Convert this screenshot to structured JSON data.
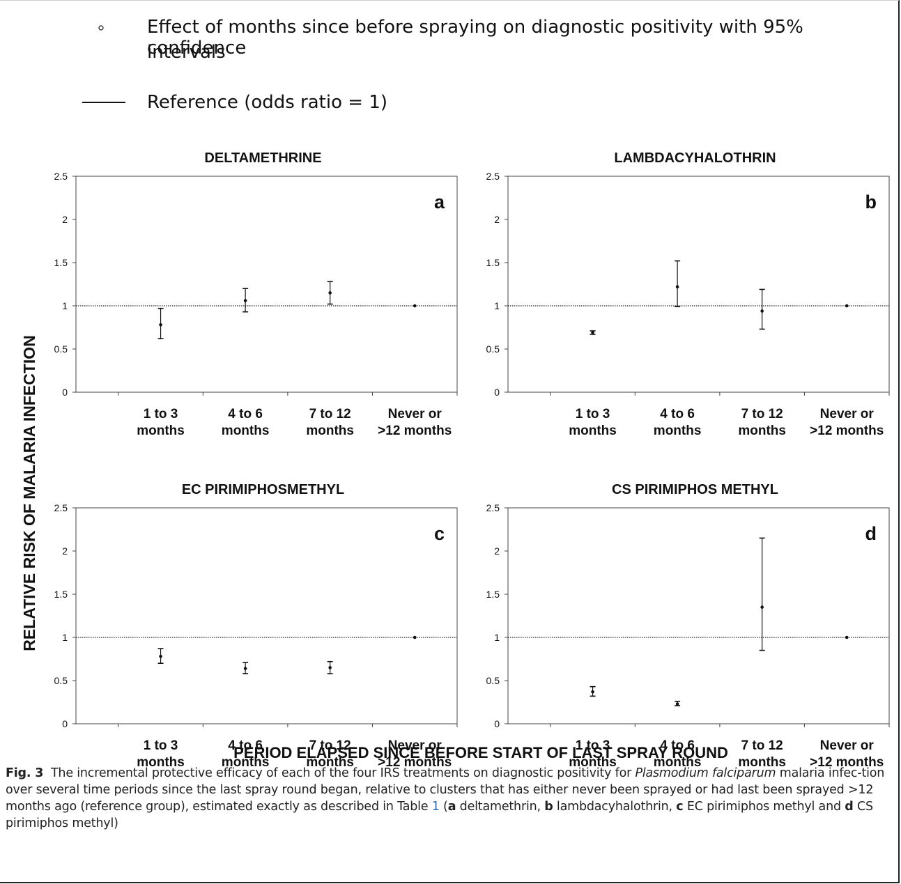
{
  "legend": {
    "point_label": "Effect of months since before spraying on diagnostic positivity with 95% confidence intervals",
    "point_label_line1": "Effect of months since before spraying on diagnostic positivity with 95% confidence",
    "point_label_line2": "intervals",
    "reference_label": "Reference (odds ratio = 1)"
  },
  "ylabel": "RELATIVE RISK OF MALARIA  INFECTION",
  "xlabel": "PERIOD ELAPSED SINCE BEFORE START OF LAST SPRAY ROUND",
  "caption": {
    "fig_label": "Fig. 3",
    "part1": "The incremental protective efficacy of each of the four IRS treatments on diagnostic positivity for ",
    "species": "Plasmodium falciparum",
    "part2": " malaria infec-tion over several time periods since the last spray round began, relative to clusters that has either never been sprayed or had last been sprayed >12 months ago (reference group), estimated exactly as described in Table ",
    "table_ref": "1",
    "part3": " (",
    "a": "a",
    "a_text": " deltamethrin, ",
    "b": "b",
    "b_text": " lambdacyhalothrin, ",
    "c": "c",
    "c_text": " EC pirimiphos methyl and ",
    "d": "d",
    "d_text": " CS pirimiphos methyl)"
  },
  "colors": {
    "ink": "#111111",
    "reference_line": "#222222"
  },
  "chart_data": [
    {
      "type": "scatter",
      "title": "DELTAMETHRINE",
      "panel_letter": "a",
      "categories": [
        [
          "1 to 3",
          "months"
        ],
        [
          "4 to 6",
          "months"
        ],
        [
          "7 to 12",
          "months"
        ],
        [
          "Never or",
          ">12 months"
        ]
      ],
      "values": [
        0.78,
        1.06,
        1.15,
        1.0
      ],
      "ci_low": [
        0.62,
        0.93,
        1.02,
        1.0
      ],
      "ci_high": [
        0.97,
        1.2,
        1.28,
        1.0
      ],
      "reference": 1,
      "ylim": [
        0,
        2.5
      ],
      "yticks": [
        "0",
        "0.5",
        "1",
        "1.5",
        "2",
        "2.5"
      ]
    },
    {
      "type": "scatter",
      "title": "LAMBDACYHALOTHRIN",
      "panel_letter": "b",
      "categories": [
        [
          "1 to 3",
          "months"
        ],
        [
          "4 to 6",
          "months"
        ],
        [
          "7 to 12",
          "months"
        ],
        [
          "Never or",
          ">12 months"
        ]
      ],
      "values": [
        0.69,
        1.22,
        0.94,
        1.0
      ],
      "ci_low": [
        0.67,
        0.99,
        0.73,
        1.0
      ],
      "ci_high": [
        0.71,
        1.52,
        1.19,
        1.0
      ],
      "reference": 1,
      "ylim": [
        0,
        2.5
      ],
      "yticks": [
        "0",
        "0.5",
        "1",
        "1.5",
        "2",
        "2.5"
      ]
    },
    {
      "type": "scatter",
      "title": "EC PIRIMIPHOSMETHYL",
      "panel_letter": "c",
      "categories": [
        [
          "1 to 3",
          "months"
        ],
        [
          "4 to 6",
          "months"
        ],
        [
          "7 to 12",
          "months"
        ],
        [
          "Never or",
          ">12 months"
        ]
      ],
      "values": [
        0.78,
        0.64,
        0.65,
        1.0
      ],
      "ci_low": [
        0.7,
        0.58,
        0.58,
        1.0
      ],
      "ci_high": [
        0.87,
        0.71,
        0.72,
        1.0
      ],
      "reference": 1,
      "ylim": [
        0,
        2.5
      ],
      "yticks": [
        "0",
        "0.5",
        "1",
        "1.5",
        "2",
        "2.5"
      ]
    },
    {
      "type": "scatter",
      "title": "CS PIRIMIPHOS METHYL",
      "panel_letter": "d",
      "categories": [
        [
          "1 to 3",
          "months"
        ],
        [
          "4 to 6",
          "months"
        ],
        [
          "7 to 12",
          "months"
        ],
        [
          "Never or",
          ">12 months"
        ]
      ],
      "values": [
        0.37,
        0.23,
        1.35,
        1.0
      ],
      "ci_low": [
        0.32,
        0.21,
        0.85,
        1.0
      ],
      "ci_high": [
        0.43,
        0.26,
        2.15,
        1.0
      ],
      "reference": 1,
      "ylim": [
        0,
        2.5
      ],
      "yticks": [
        "0",
        "0.5",
        "1",
        "1.5",
        "2",
        "2.5"
      ]
    }
  ]
}
